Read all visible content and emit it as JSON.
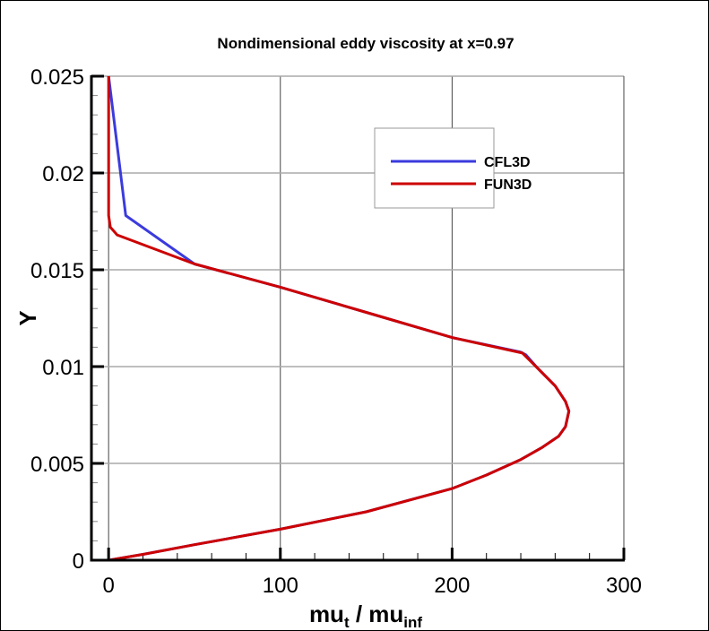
{
  "chart_data": {
    "type": "line",
    "title": "Nondimensional eddy viscosity at x=0.97",
    "xlabel": {
      "main": "mu",
      "sub1": "t",
      "mid": " / mu",
      "sub2": "inf"
    },
    "ylabel": "Y",
    "xlim": [
      -10,
      300
    ],
    "ylim": [
      0,
      0.025
    ],
    "xticks": [
      0,
      100,
      200,
      300
    ],
    "xtick_labels": [
      "0",
      "100",
      "200",
      "300"
    ],
    "xminor_step": 20,
    "yticks": [
      0,
      0.005,
      0.01,
      0.015,
      0.02,
      0.025
    ],
    "ytick_labels": [
      "0",
      "0.005",
      "0.01",
      "0.015",
      "0.02",
      "0.025"
    ],
    "yminor_step": 0.001,
    "grid": true,
    "legend_position": "top-right",
    "series": [
      {
        "name": "CFL3D",
        "color": "#3b3bde",
        "x": [
          0,
          10,
          50,
          100,
          150,
          200,
          240,
          243,
          250,
          260,
          266,
          268,
          266,
          262,
          252,
          240,
          220,
          200,
          150,
          100,
          50,
          20,
          0
        ],
        "y": [
          0.025,
          0.0178,
          0.0153,
          0.0141,
          0.0128,
          0.0115,
          0.01075,
          0.0106,
          0.0099,
          0.009,
          0.0082,
          0.0077,
          0.0069,
          0.0064,
          0.0058,
          0.0052,
          0.0044,
          0.0037,
          0.0025,
          0.0016,
          0.0008,
          0.0003,
          0
        ]
      },
      {
        "name": "FUN3D",
        "color": "#cc0000",
        "x": [
          0,
          0,
          1,
          5,
          50,
          100,
          150,
          200,
          241,
          250,
          260,
          266,
          268,
          266,
          262,
          252,
          240,
          220,
          200,
          150,
          100,
          50,
          20,
          0
        ],
        "y": [
          0.025,
          0.0178,
          0.0172,
          0.0168,
          0.0153,
          0.0141,
          0.0128,
          0.0115,
          0.0107,
          0.0099,
          0.009,
          0.0082,
          0.0077,
          0.0069,
          0.0064,
          0.0058,
          0.0052,
          0.0044,
          0.0037,
          0.0025,
          0.0016,
          0.0008,
          0.0003,
          0
        ]
      }
    ]
  }
}
